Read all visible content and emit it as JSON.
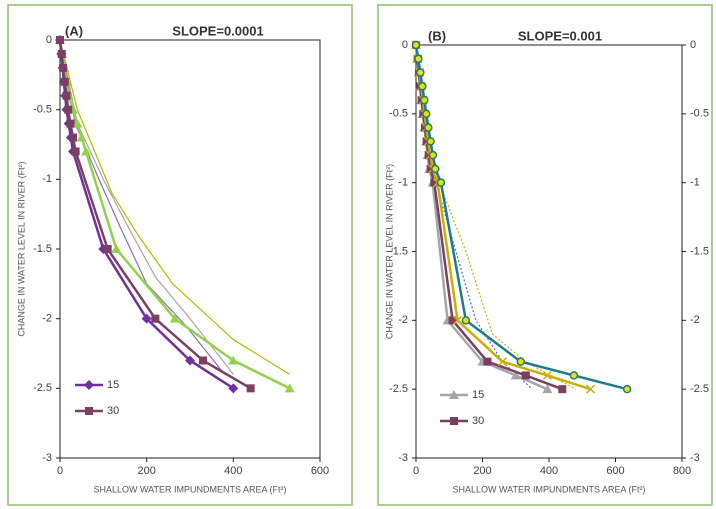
{
  "chart_data": [
    {
      "type": "line",
      "label": "(A)",
      "title": "SLOPE=0.0001",
      "x_label": "SHALLOW WATER IMPUNDMENTS AREA (Ft²)",
      "y_label": "CHANGE IN WATER LEVEL IN RIVER (Ft²)",
      "xlim": [
        0,
        600
      ],
      "xticks": [
        0,
        200,
        400,
        600
      ],
      "ylim": [
        -3,
        0
      ],
      "yticks": [
        0,
        -0.5,
        -1,
        -1.5,
        -2,
        -2.5,
        -3
      ],
      "series": [
        {
          "color": "#b5b800",
          "x": [
            0,
            40,
            120,
            180,
            260,
            400,
            530
          ],
          "values": [
            0,
            -0.5,
            -1.1,
            -1.4,
            -1.75,
            -2.15,
            -2.4
          ]
        },
        {
          "color": "#a6a6a6",
          "x": [
            0,
            40,
            100,
            150,
            220,
            300,
            400
          ],
          "values": [
            0,
            -0.6,
            -1,
            -1.3,
            -1.7,
            -2,
            -2.4
          ]
        },
        {
          "color": "#8e6fa8",
          "x": [
            0,
            35,
            90,
            140,
            200,
            290,
            380
          ],
          "values": [
            0,
            -0.6,
            -1,
            -1.35,
            -1.75,
            -2.05,
            -2.4
          ]
        },
        {
          "color": "#92d050",
          "marker": "triangle",
          "x": [
            0,
            5,
            10,
            15,
            20,
            30,
            40,
            50,
            60,
            130,
            265,
            400,
            530
          ],
          "values": [
            0,
            -0.1,
            -0.2,
            -0.3,
            -0.4,
            -0.5,
            -0.6,
            -0.7,
            -0.8,
            -1.5,
            -2,
            -2.3,
            -2.5
          ]
        },
        {
          "name": "15",
          "color": "#7030a0",
          "marker": "diamond",
          "x": [
            0,
            3,
            6,
            9,
            12,
            15,
            20,
            25,
            30,
            100,
            200,
            300,
            400
          ],
          "values": [
            0,
            -0.1,
            -0.2,
            -0.3,
            -0.4,
            -0.5,
            -0.6,
            -0.7,
            -0.8,
            -1.5,
            -2,
            -2.3,
            -2.5
          ]
        },
        {
          "name": "30",
          "color": "#7b3f61",
          "marker": "square",
          "x": [
            0,
            4,
            7,
            11,
            15,
            19,
            24,
            30,
            36,
            110,
            220,
            330,
            440
          ],
          "values": [
            0,
            -0.1,
            -0.2,
            -0.3,
            -0.4,
            -0.5,
            -0.6,
            -0.7,
            -0.8,
            -1.5,
            -2,
            -2.3,
            -2.5
          ]
        }
      ]
    },
    {
      "type": "line",
      "label": "(B)",
      "title": "SLOPE=0.001",
      "x_label": "SHALLOW WATER IMPUNDMENTS AREA (Ft²)",
      "y_label": "CHANGE IN WATER LEVEL IN RIVER (Ft²)",
      "xlim": [
        0,
        800
      ],
      "xticks": [
        0,
        200,
        400,
        600,
        800
      ],
      "ylim": [
        -3,
        0
      ],
      "yticks": [
        0,
        -0.5,
        -1,
        -1.5,
        -2,
        -2.5,
        -3
      ],
      "y2lim": [
        -3,
        0
      ],
      "y2ticks": [
        0,
        -0.5,
        -1,
        -1.5,
        -2,
        -2.5,
        -3
      ],
      "series": [
        {
          "color": "#4472c4",
          "dash": "dotted",
          "x": [
            0,
            20,
            60,
            120,
            180,
            260,
            350
          ],
          "values": [
            0,
            -0.5,
            -1,
            -1.5,
            -2,
            -2.3,
            -2.5
          ]
        },
        {
          "color": "#c9b000",
          "dash": "dotted",
          "x": [
            0,
            25,
            70,
            150,
            230,
            330,
            480
          ],
          "values": [
            0,
            -0.5,
            -1,
            -1.5,
            -2.1,
            -2.3,
            -2.5
          ]
        },
        {
          "name": "15",
          "color": "#a6a6a6",
          "marker": "triangle",
          "x": [
            0,
            4,
            8,
            12,
            16,
            20,
            25,
            30,
            35,
            40,
            50,
            95,
            200,
            300,
            395
          ],
          "values": [
            0,
            -0.1,
            -0.2,
            -0.3,
            -0.4,
            -0.5,
            -0.6,
            -0.7,
            -0.8,
            -0.9,
            -1,
            -2,
            -2.3,
            -2.4,
            -2.5
          ]
        },
        {
          "name": "30",
          "color": "#7b3f61",
          "marker": "square",
          "x": [
            0,
            5,
            9,
            13,
            17,
            22,
            27,
            32,
            38,
            44,
            55,
            110,
            215,
            330,
            440
          ],
          "values": [
            0,
            -0.1,
            -0.2,
            -0.3,
            -0.4,
            -0.5,
            -0.6,
            -0.7,
            -0.8,
            -0.9,
            -1,
            -2,
            -2.3,
            -2.4,
            -2.5
          ]
        },
        {
          "color": "#c9b000",
          "marker": "x",
          "x": [
            0,
            6,
            11,
            16,
            21,
            26,
            31,
            37,
            43,
            50,
            65,
            125,
            260,
            395,
            525
          ],
          "values": [
            0,
            -0.1,
            -0.2,
            -0.3,
            -0.4,
            -0.5,
            -0.6,
            -0.7,
            -0.8,
            -0.9,
            -1,
            -2,
            -2.3,
            -2.4,
            -2.5
          ]
        },
        {
          "color": "#1f7a8c",
          "marker": "circle",
          "axis": "y2",
          "x": [
            0,
            7,
            13,
            19,
            25,
            31,
            37,
            44,
            51,
            58,
            75,
            150,
            315,
            475,
            635
          ],
          "values": [
            0,
            -0.1,
            -0.2,
            -0.3,
            -0.4,
            -0.5,
            -0.6,
            -0.7,
            -0.8,
            -0.9,
            -1,
            -2,
            -2.3,
            -2.4,
            -2.5
          ]
        }
      ]
    }
  ]
}
